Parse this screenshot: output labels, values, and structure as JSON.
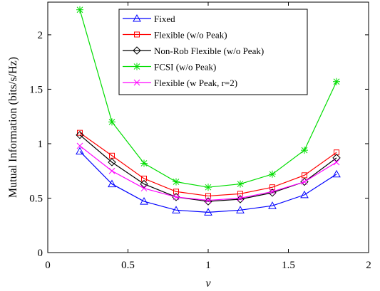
{
  "chart_data": {
    "type": "line",
    "xlabel": "ν",
    "ylabel": "Mutual Information (bits/s/Hz)",
    "xlim": [
      0,
      2
    ],
    "ylim": [
      0,
      2.3
    ],
    "xticks": [
      0,
      0.5,
      1,
      1.5,
      2
    ],
    "xtick_labels": [
      "0",
      "0.5",
      "1",
      "1.5",
      "2"
    ],
    "yticks": [
      0,
      0.5,
      1,
      1.5,
      2
    ],
    "ytick_labels": [
      "0",
      "0.5",
      "1",
      "1.5",
      "2"
    ],
    "grid": false,
    "legend_position": "top-center",
    "x": [
      0.2,
      0.4,
      0.6,
      0.8,
      1.0,
      1.2,
      1.4,
      1.6,
      1.8
    ],
    "series": [
      {
        "name": "Fixed",
        "color": "#0000ff",
        "marker": "triangle",
        "values": [
          0.93,
          0.63,
          0.47,
          0.39,
          0.37,
          0.39,
          0.43,
          0.53,
          0.72
        ]
      },
      {
        "name": "Flexible (w/o Peak)",
        "color": "#ff0000",
        "marker": "square",
        "values": [
          1.1,
          0.89,
          0.68,
          0.56,
          0.52,
          0.54,
          0.6,
          0.71,
          0.92
        ]
      },
      {
        "name": "Non-Rob Flexible (w/o Peak)",
        "color": "#000000",
        "marker": "diamond",
        "values": [
          1.08,
          0.83,
          0.63,
          0.51,
          0.47,
          0.49,
          0.55,
          0.65,
          0.87
        ]
      },
      {
        "name": "FCSI (w/o Peak)",
        "color": "#00dd00",
        "marker": "asterisk",
        "values": [
          2.23,
          1.2,
          0.82,
          0.65,
          0.6,
          0.63,
          0.72,
          0.94,
          1.57
        ]
      },
      {
        "name": "Flexible (w Peak, r=2)",
        "color": "#ff00ff",
        "marker": "x",
        "values": [
          0.98,
          0.75,
          0.59,
          0.51,
          0.48,
          0.5,
          0.56,
          0.65,
          0.83
        ]
      }
    ]
  }
}
